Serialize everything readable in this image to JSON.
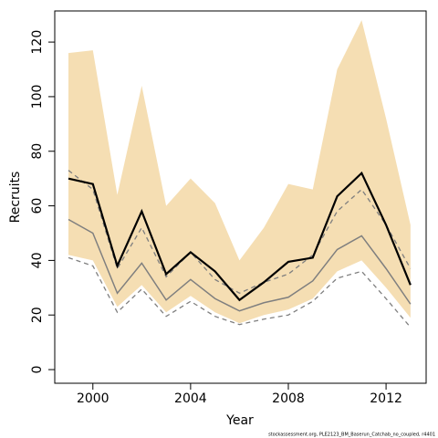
{
  "chart_data": {
    "type": "line",
    "xlabel": "Year",
    "ylabel": "Recruits",
    "footnote": "stockassessment.org, PLE2123_BM_Baserun_Catchab_no_coupled, r4401",
    "x": [
      1999,
      2000,
      2001,
      2002,
      2003,
      2004,
      2005,
      2006,
      2007,
      2008,
      2009,
      2010,
      2011,
      2012,
      2013
    ],
    "band": {
      "color": "#f5deb3",
      "upper": [
        116,
        117,
        64,
        104,
        60,
        70,
        61,
        40,
        52,
        68,
        66,
        110,
        128,
        92,
        53
      ],
      "lower": [
        42,
        40,
        23,
        31,
        21,
        27,
        21,
        17,
        20,
        22,
        26,
        36,
        40,
        30,
        19
      ]
    },
    "series": [
      {
        "color": "#7f7f7f",
        "dash": "5,4",
        "width": 1.3,
        "values": [
          73,
          66,
          37,
          52,
          34,
          43,
          33,
          28,
          32,
          35,
          42,
          58,
          66,
          53,
          37
        ]
      },
      {
        "color": "#7f7f7f",
        "dash": "5,4",
        "width": 1.3,
        "values": [
          41,
          38,
          21,
          29.5,
          19.5,
          25,
          19.5,
          16.5,
          18.5,
          20,
          25,
          33.5,
          36,
          26,
          15.5
        ]
      },
      {
        "color": "#7f7f7f",
        "width": 1.5,
        "values": [
          55,
          50,
          28,
          39,
          25.5,
          33,
          26,
          21.5,
          24.5,
          26.5,
          32.5,
          44,
          49,
          37,
          24
        ]
      },
      {
        "color": "#000000",
        "width": 2.2,
        "values": [
          70,
          68,
          38,
          58,
          35,
          43,
          36,
          25.5,
          32,
          39.5,
          41,
          63.5,
          72,
          53,
          31
        ]
      }
    ],
    "xlim": [
      1998.44,
      2013.64
    ],
    "ylim": [
      -5,
      131.4
    ],
    "xticks": [
      2000,
      2004,
      2008,
      2012
    ],
    "yticks": [
      0,
      20,
      40,
      60,
      80,
      100,
      120
    ]
  }
}
